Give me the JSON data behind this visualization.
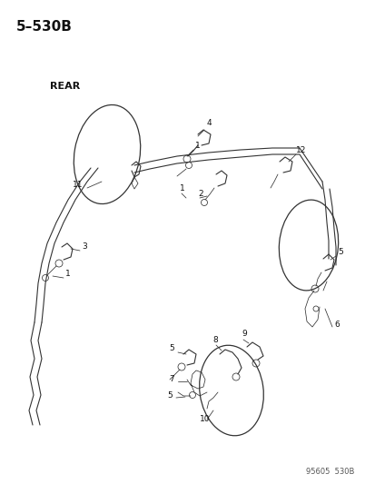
{
  "title": "5–530B",
  "rear_label": "REAR",
  "footer": "95605  530B",
  "bg_color": "#ffffff",
  "fg_color": "#111111",
  "title_fontsize": 11,
  "label_fontsize": 6.5,
  "rear_fontsize": 8,
  "footer_fontsize": 6,
  "line_color": "#333333",
  "line_width": 0.8
}
